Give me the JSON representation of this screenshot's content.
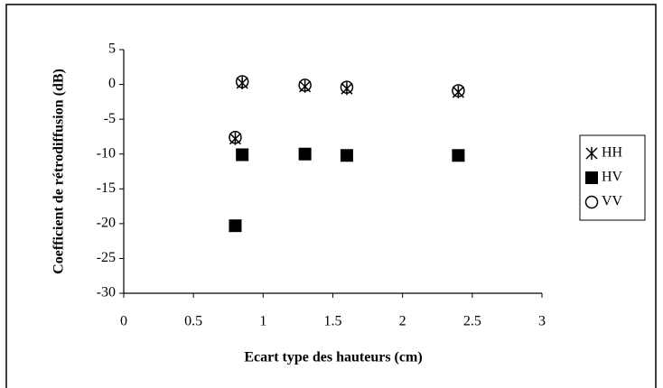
{
  "chart_data": {
    "type": "scatter",
    "x_label": "Ecart type des hauteurs (cm)",
    "y_label": "Coefficient de rétrodiffusion (dB)",
    "x": [
      0.8,
      0.85,
      1.3,
      1.6,
      2.4
    ],
    "series": [
      {
        "name": "HH",
        "color": "#000000",
        "marker": "asterisk",
        "values": [
          -7.8,
          0.2,
          -0.3,
          -0.6,
          -1.1
        ]
      },
      {
        "name": "HV",
        "color": "#000000",
        "marker": "square",
        "values": [
          -20.3,
          -10.1,
          -10.0,
          -10.2,
          -10.2
        ]
      },
      {
        "name": "VV",
        "color": "#000000",
        "marker": "circle",
        "values": [
          -7.6,
          0.4,
          -0.1,
          -0.4,
          -0.9
        ]
      }
    ],
    "xlim": [
      0,
      3
    ],
    "xticks": [
      0,
      0.5,
      1,
      1.5,
      2,
      2.5,
      3
    ],
    "ylim": [
      -30,
      5
    ],
    "yticks": [
      5,
      0,
      -5,
      -10,
      -15,
      -20,
      -25,
      -30
    ],
    "grid": false,
    "legend": "right"
  }
}
